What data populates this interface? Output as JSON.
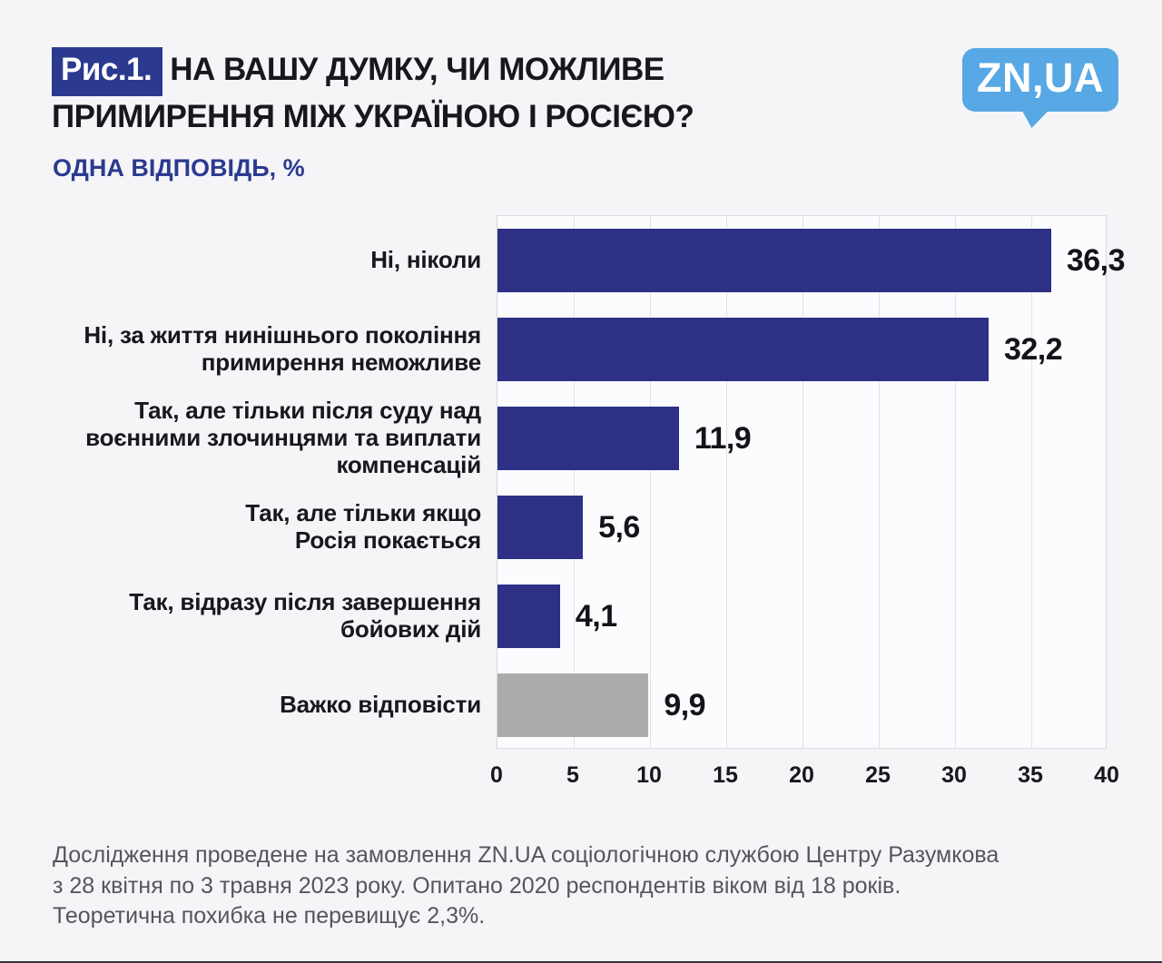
{
  "header": {
    "figure_label": "Рис.1.",
    "title": "НА ВАШУ ДУМКУ, ЧИ МОЖЛИВЕ ПРИМИРЕННЯ МІЖ УКРАЇНОЮ І РОСІЄЮ?",
    "subtitle": "ОДНА ВІДПОВІДЬ, %"
  },
  "logo": {
    "text": "ZN,UA",
    "color": "#57a8e4"
  },
  "chart_data": {
    "type": "bar",
    "orientation": "horizontal",
    "title": "НА ВАШУ ДУМКУ, ЧИ МОЖЛИВЕ ПРИМИРЕННЯ МІЖ УКРАЇНОЮ І РОСІЄЮ?",
    "subtitle": "ОДНА ВІДПОВІДЬ, %",
    "categories": [
      "Ні, ніколи",
      "Ні, за життя нинішнього покоління\nпримирення неможливе",
      "Так, але тільки після суду над\nвоєнними злочинцями та виплати\nкомпенсацій",
      "Так, але тільки якщо\nРосія покається",
      "Так, відразу після завершення\nбойових дій",
      "Важко відповісти"
    ],
    "values": [
      36.3,
      32.2,
      11.9,
      5.6,
      4.1,
      9.9
    ],
    "value_labels": [
      "36,3",
      "32,2",
      "11,9",
      "5,6",
      "4,1",
      "9,9"
    ],
    "bar_colors": [
      "#2d3085",
      "#2d3085",
      "#2d3085",
      "#2d3085",
      "#2d3085",
      "#ababab"
    ],
    "xlim": [
      0,
      40
    ],
    "x_ticks": [
      0,
      5,
      10,
      15,
      20,
      25,
      30,
      35,
      40
    ],
    "grid": true,
    "legend": "none"
  },
  "footer": {
    "lines": [
      "Дослідження проведене на замовлення ZN.UA соціологічною службою Центру Разумкова",
      "з 28 квітня по 3 травня 2023 року. Опитано 2020 респондентів віком від 18 років.",
      "Теоретична похибка не перевищує 2,3%."
    ]
  },
  "colors": {
    "page_bg": "#f5f5f8",
    "plot_bg": "#fcfcfe",
    "plot_border": "#d9d9de",
    "gridline": "#e2e2e7",
    "accent_navy": "#2b3a8f",
    "bar_navy": "#2d3085",
    "bar_gray": "#ababab",
    "logo_blue": "#57a8e4",
    "text_dark": "#17171c",
    "text_muted": "#55555b"
  }
}
